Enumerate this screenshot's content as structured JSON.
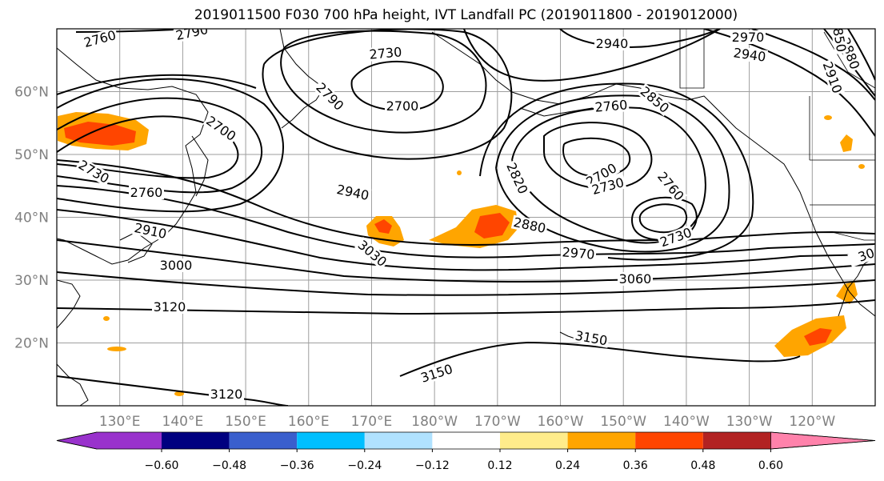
{
  "title": "2019011500 F030 700 hPa height, IVT Landfall PC (2019011800 - 2019012000)",
  "map": {
    "lon_range": [
      120,
      250
    ],
    "lat_range": [
      10,
      70
    ],
    "lat_ticks": [
      {
        "lat": 20,
        "label": "20°N"
      },
      {
        "lat": 30,
        "label": "30°N"
      },
      {
        "lat": 40,
        "label": "40°N"
      },
      {
        "lat": 50,
        "label": "50°N"
      },
      {
        "lat": 60,
        "label": "60°N"
      }
    ],
    "lon_ticks": [
      {
        "lon": 130,
        "label": "130°E"
      },
      {
        "lon": 140,
        "label": "140°E"
      },
      {
        "lon": 150,
        "label": "150°E"
      },
      {
        "lon": 160,
        "label": "160°E"
      },
      {
        "lon": 170,
        "label": "170°E"
      },
      {
        "lon": 180,
        "label": "180°W"
      },
      {
        "lon": 190,
        "label": "170°W"
      },
      {
        "lon": 200,
        "label": "160°W"
      },
      {
        "lon": 210,
        "label": "150°W"
      },
      {
        "lon": 220,
        "label": "140°W"
      },
      {
        "lon": 230,
        "label": "130°W"
      },
      {
        "lon": 240,
        "label": "120°W"
      }
    ],
    "contour_labels": [
      "2760",
      "2790",
      "2730",
      "2700",
      "2940",
      "2970",
      "2940",
      "2850",
      "2880",
      "2910",
      "2760",
      "2700",
      "2790",
      "2850",
      "2700",
      "2730",
      "2730",
      "2820",
      "2760",
      "2760",
      "2940",
      "2880",
      "2910",
      "3030",
      "3000",
      "2970",
      "2730",
      "3060",
      "3120",
      "3150",
      "3150",
      "3120",
      "30"
    ]
  },
  "colorbar": {
    "colors": [
      "#9932cc",
      "#000080",
      "#3a5fcd",
      "#00bfff",
      "#b0e2ff",
      "#ffffff",
      "#ffec8b",
      "#ffa500",
      "#ff4500",
      "#b22222",
      "#ff82ab"
    ],
    "tick_labels": [
      "−0.60",
      "−0.48",
      "−0.36",
      "−0.24",
      "−0.12",
      "0.12",
      "0.24",
      "0.36",
      "0.48",
      "0.60"
    ]
  }
}
